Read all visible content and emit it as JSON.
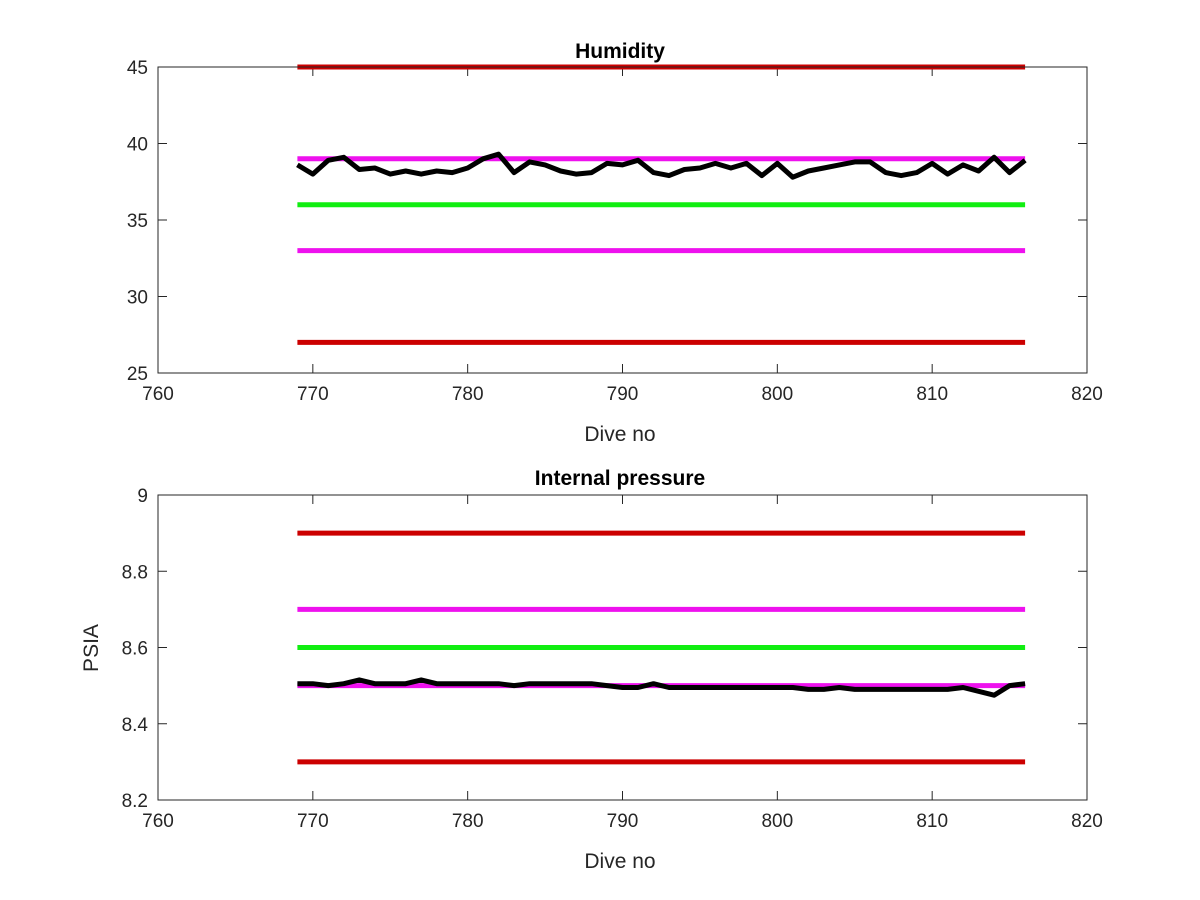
{
  "chart_data": [
    {
      "type": "line",
      "title": "Humidity",
      "xlabel": "Dive no",
      "ylabel": "",
      "xlim": [
        760,
        820
      ],
      "ylim": [
        25,
        45
      ],
      "xticks": [
        760,
        770,
        780,
        790,
        800,
        810,
        820
      ],
      "yticks": [
        25,
        30,
        35,
        40,
        45
      ],
      "grid": false,
      "series": [
        {
          "color": "#000000",
          "x": [
            769,
            770,
            771,
            772,
            773,
            774,
            775,
            776,
            777,
            778,
            779,
            780,
            781,
            782,
            783,
            784,
            785,
            786,
            787,
            788,
            789,
            790,
            791,
            792,
            793,
            794,
            795,
            796,
            797,
            798,
            799,
            800,
            801,
            802,
            803,
            804,
            805,
            806,
            807,
            808,
            809,
            810,
            811,
            812,
            813,
            814,
            815,
            816
          ],
          "y": [
            38.6,
            38.0,
            38.9,
            39.1,
            38.3,
            38.4,
            38.0,
            38.2,
            38.0,
            38.2,
            38.1,
            38.4,
            39.0,
            39.3,
            38.1,
            38.8,
            38.6,
            38.2,
            38.0,
            38.1,
            38.7,
            38.6,
            38.9,
            38.1,
            37.9,
            38.3,
            38.4,
            38.7,
            38.4,
            38.7,
            37.9,
            38.7,
            37.8,
            38.2,
            38.4,
            38.6,
            38.8,
            38.8,
            38.1,
            37.9,
            38.1,
            38.7,
            38.0,
            38.6,
            38.2,
            39.1,
            38.1,
            38.9
          ]
        },
        {
          "color": "#cc0000",
          "x": [
            769,
            816
          ],
          "y": [
            45,
            45
          ]
        },
        {
          "color": "#ee11ee",
          "x": [
            769,
            816
          ],
          "y": [
            39,
            39
          ]
        },
        {
          "color": "#11ee11",
          "x": [
            769,
            816
          ],
          "y": [
            36,
            36
          ]
        },
        {
          "color": "#ee11ee",
          "x": [
            769,
            816
          ],
          "y": [
            33,
            33
          ]
        },
        {
          "color": "#cc0000",
          "x": [
            769,
            816
          ],
          "y": [
            27,
            27
          ]
        }
      ]
    },
    {
      "type": "line",
      "title": "Internal pressure",
      "xlabel": "Dive no",
      "ylabel": "PSIA",
      "xlim": [
        760,
        820
      ],
      "ylim": [
        8.2,
        9
      ],
      "xticks": [
        760,
        770,
        780,
        790,
        800,
        810,
        820
      ],
      "yticks": [
        8.2,
        8.4,
        8.6,
        8.8,
        9
      ],
      "grid": false,
      "series": [
        {
          "color": "#000000",
          "x": [
            769,
            770,
            771,
            772,
            773,
            774,
            775,
            776,
            777,
            778,
            779,
            780,
            781,
            782,
            783,
            784,
            785,
            786,
            787,
            788,
            789,
            790,
            791,
            792,
            793,
            794,
            795,
            796,
            797,
            798,
            799,
            800,
            801,
            802,
            803,
            804,
            805,
            806,
            807,
            808,
            809,
            810,
            811,
            812,
            813,
            814,
            815,
            816
          ],
          "y": [
            8.505,
            8.505,
            8.5,
            8.505,
            8.515,
            8.505,
            8.505,
            8.505,
            8.515,
            8.505,
            8.505,
            8.505,
            8.505,
            8.505,
            8.5,
            8.505,
            8.505,
            8.505,
            8.505,
            8.505,
            8.5,
            8.495,
            8.495,
            8.505,
            8.495,
            8.495,
            8.495,
            8.495,
            8.495,
            8.495,
            8.495,
            8.495,
            8.495,
            8.49,
            8.49,
            8.495,
            8.49,
            8.49,
            8.49,
            8.49,
            8.49,
            8.49,
            8.49,
            8.495,
            8.485,
            8.475,
            8.5,
            8.505
          ]
        },
        {
          "color": "#cc0000",
          "x": [
            769,
            816
          ],
          "y": [
            8.9,
            8.9
          ]
        },
        {
          "color": "#ee11ee",
          "x": [
            769,
            816
          ],
          "y": [
            8.7,
            8.7
          ]
        },
        {
          "color": "#11ee11",
          "x": [
            769,
            816
          ],
          "y": [
            8.6,
            8.6
          ]
        },
        {
          "color": "#ee11ee",
          "x": [
            769,
            816
          ],
          "y": [
            8.5,
            8.5
          ]
        },
        {
          "color": "#cc0000",
          "x": [
            769,
            816
          ],
          "y": [
            8.3,
            8.3
          ]
        }
      ]
    }
  ]
}
